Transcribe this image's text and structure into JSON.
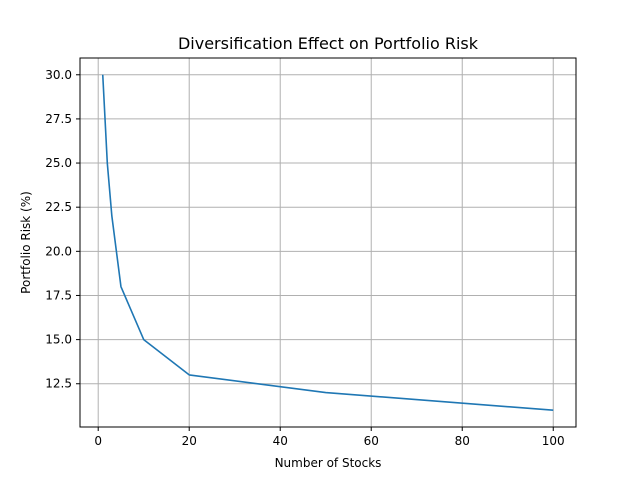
{
  "chart_data": {
    "type": "line",
    "title": "Diversification Effect on Portfolio Risk",
    "xlabel": "Number of Stocks",
    "ylabel": "Portfolio Risk (%)",
    "xlim": [
      -4,
      105
    ],
    "ylim": [
      10.05,
      30.95
    ],
    "xticks": [
      0,
      20,
      40,
      60,
      80,
      100
    ],
    "yticks": [
      12.5,
      15.0,
      17.5,
      20.0,
      22.5,
      25.0,
      27.5,
      30.0
    ],
    "xtick_labels": [
      "0",
      "20",
      "40",
      "60",
      "80",
      "100"
    ],
    "ytick_labels": [
      "12.5",
      "15.0",
      "17.5",
      "20.0",
      "22.5",
      "25.0",
      "27.5",
      "30.0"
    ],
    "grid": true,
    "series": [
      {
        "color": "#1f77b4",
        "x": [
          1,
          2,
          3,
          5,
          10,
          20,
          50,
          100
        ],
        "y": [
          30,
          25,
          22,
          18,
          15,
          13,
          12,
          11
        ]
      }
    ]
  }
}
